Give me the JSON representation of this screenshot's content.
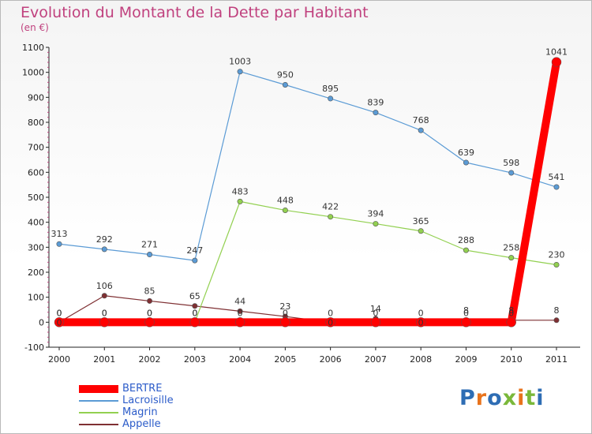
{
  "title": "Evolution du Montant de la Dette par Habitant",
  "subtitle": "(en €)",
  "logo_text": "Proxiti",
  "chart_data": {
    "type": "line",
    "x": [
      "2000",
      "2001",
      "2002",
      "2003",
      "2004",
      "2005",
      "2006",
      "2007",
      "2008",
      "2009",
      "2010",
      "2011"
    ],
    "ylim": [
      -100,
      1100
    ],
    "yticks": [
      -100,
      0,
      100,
      200,
      300,
      400,
      500,
      600,
      700,
      800,
      900,
      1000,
      1100
    ],
    "grid": false,
    "legend_position": "bottom-left",
    "series": [
      {
        "name": "BERTRE",
        "color": "#ff0000",
        "values": [
          0,
          0,
          0,
          0,
          0,
          0,
          0,
          0,
          0,
          0,
          0,
          1041
        ],
        "labels": [
          "0",
          "0",
          "0",
          "0",
          "0",
          "0",
          "0",
          "0",
          "0",
          "0",
          "0",
          "1041"
        ]
      },
      {
        "name": "Lacroisille",
        "color": "#5b9bd5",
        "values": [
          313,
          292,
          271,
          247,
          1003,
          950,
          895,
          839,
          768,
          639,
          598,
          541
        ],
        "labels": [
          "313",
          "292",
          "271",
          "247",
          "1003",
          "950",
          "895",
          "839",
          "768",
          "639",
          "598",
          "541"
        ]
      },
      {
        "name": "Magrin",
        "color": "#92d050",
        "values": [
          0,
          0,
          0,
          0,
          483,
          448,
          422,
          394,
          365,
          288,
          258,
          230
        ],
        "labels": [
          "0",
          "0",
          "0",
          "0",
          "483",
          "448",
          "422",
          "394",
          "365",
          "288",
          "258",
          "230"
        ]
      },
      {
        "name": "Appelle",
        "color": "#7f3033",
        "values": [
          0,
          106,
          85,
          65,
          44,
          23,
          0,
          14,
          0,
          8,
          8,
          8
        ],
        "labels": [
          "0",
          "106",
          "85",
          "65",
          "44",
          "23",
          "0",
          "14",
          "0",
          "8",
          "8",
          "8"
        ]
      }
    ]
  }
}
